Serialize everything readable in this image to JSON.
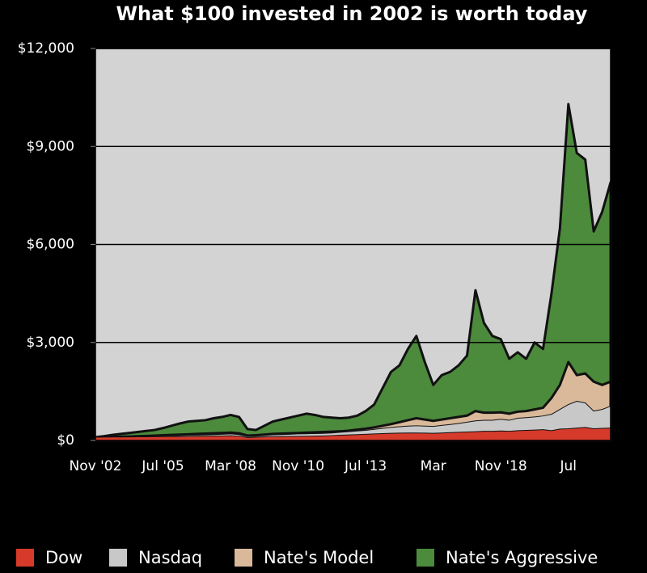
{
  "chart_data": {
    "type": "area",
    "title": "What $100 invested in 2002 is worth today",
    "categories": [
      "Nov '02",
      null,
      null,
      null,
      null,
      null,
      null,
      null,
      "Jul '05",
      null,
      null,
      null,
      null,
      null,
      null,
      null,
      "Mar '08",
      null,
      null,
      null,
      null,
      null,
      null,
      null,
      "Nov '10",
      null,
      null,
      null,
      null,
      null,
      null,
      null,
      "Jul '13",
      null,
      null,
      null,
      null,
      null,
      null,
      null,
      "Mar",
      null,
      null,
      null,
      null,
      null,
      null,
      null,
      "Nov '18",
      null,
      null,
      null,
      null,
      null,
      null,
      null,
      "Jul",
      null,
      null,
      null,
      null,
      null
    ],
    "series": [
      {
        "name": "Nate's Aggressive",
        "color": "#4c8a3c",
        "values": [
          100,
          130,
          170,
          200,
          230,
          260,
          290,
          320,
          380,
          450,
          520,
          580,
          600,
          620,
          680,
          720,
          780,
          720,
          350,
          320,
          450,
          580,
          640,
          700,
          760,
          820,
          780,
          720,
          700,
          680,
          700,
          760,
          900,
          1100,
          1600,
          2100,
          2300,
          2800,
          3200,
          2400,
          1700,
          2000,
          2100,
          2300,
          2600,
          4600,
          3600,
          3200,
          3100,
          2500,
          2700,
          2500,
          3000,
          2800,
          4500,
          6500,
          10300,
          8800,
          8600,
          6400,
          7000,
          7900
        ]
      },
      {
        "name": "Nate's Model",
        "color": "#d9b99a",
        "values": [
          100,
          105,
          110,
          115,
          120,
          130,
          140,
          150,
          160,
          170,
          180,
          190,
          200,
          210,
          220,
          230,
          240,
          220,
          150,
          160,
          180,
          200,
          210,
          220,
          230,
          240,
          250,
          260,
          270,
          280,
          300,
          330,
          360,
          400,
          450,
          500,
          560,
          620,
          680,
          640,
          600,
          640,
          680,
          720,
          760,
          900,
          850,
          850,
          860,
          820,
          880,
          900,
          950,
          1000,
          1300,
          1700,
          2400,
          2000,
          2050,
          1800,
          1700,
          1800
        ]
      },
      {
        "name": "Nasdaq",
        "color": "#c8c8c8",
        "values": [
          100,
          105,
          110,
          115,
          120,
          125,
          130,
          135,
          140,
          145,
          150,
          160,
          165,
          170,
          180,
          190,
          200,
          180,
          120,
          130,
          150,
          170,
          180,
          190,
          200,
          205,
          210,
          215,
          230,
          250,
          270,
          290,
          310,
          340,
          370,
          400,
          420,
          440,
          450,
          440,
          430,
          460,
          490,
          520,
          560,
          600,
          620,
          620,
          650,
          620,
          680,
          700,
          720,
          750,
          800,
          950,
          1100,
          1200,
          1150,
          900,
          950,
          1050
        ]
      },
      {
        "name": "Dow",
        "color": "#d63a2a",
        "values": [
          100,
          102,
          104,
          106,
          108,
          110,
          112,
          115,
          118,
          120,
          122,
          125,
          128,
          130,
          135,
          140,
          145,
          130,
          90,
          100,
          110,
          115,
          120,
          125,
          128,
          130,
          135,
          140,
          150,
          160,
          170,
          180,
          190,
          200,
          210,
          220,
          225,
          230,
          230,
          225,
          220,
          230,
          240,
          250,
          260,
          270,
          280,
          280,
          290,
          280,
          300,
          310,
          320,
          330,
          300,
          350,
          360,
          380,
          400,
          360,
          370,
          380
        ]
      }
    ],
    "ylim": [
      0,
      12000
    ],
    "yticks": [
      {
        "value": 0,
        "label": "$0"
      },
      {
        "value": 3000,
        "label": "$3,000"
      },
      {
        "value": 6000,
        "label": "$6,000"
      },
      {
        "value": 9000,
        "label": "$9,000"
      },
      {
        "value": 12000,
        "label": "$12,000"
      }
    ],
    "grid": true
  }
}
